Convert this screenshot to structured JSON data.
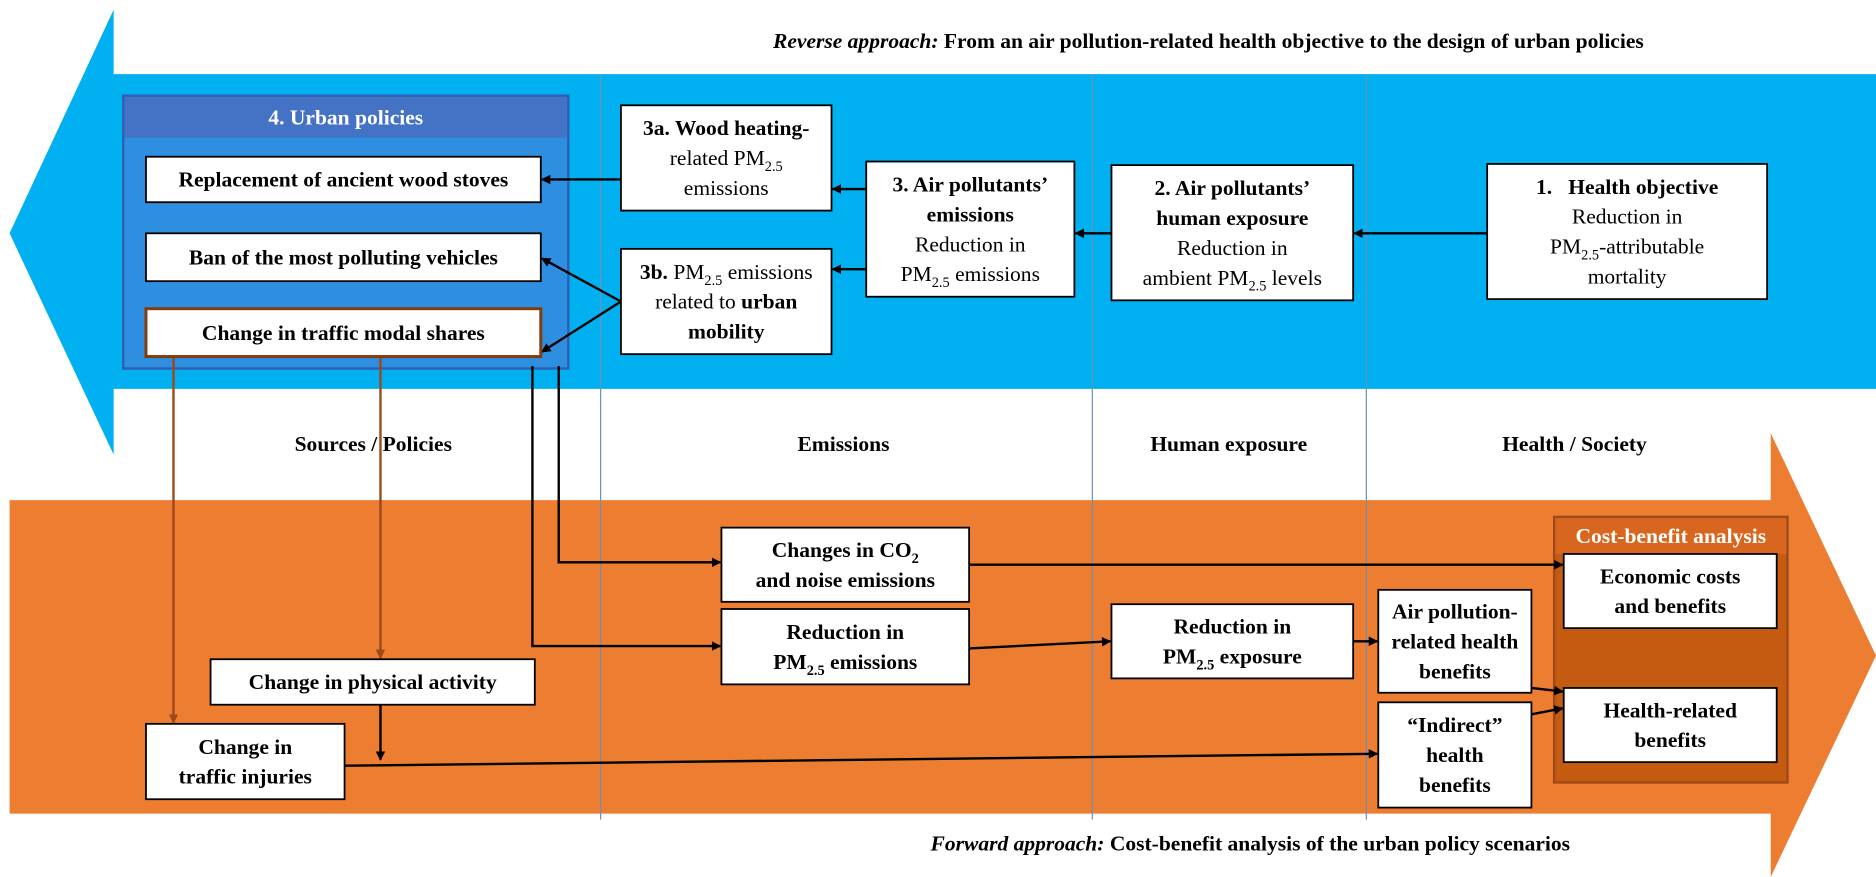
{
  "titles": {
    "reverse": [
      {
        "text": "Reverse approach:",
        "style": "bold-italic"
      },
      {
        "text": " From an air pollution-related health objective to the design of urban policies",
        "style": "bold"
      }
    ],
    "forward": [
      {
        "text": "Forward approach:",
        "style": "bold-italic"
      },
      {
        "text": " Cost-benefit analysis of the urban policy scenarios",
        "style": "bold"
      }
    ]
  },
  "columns": [
    "Sources / Policies",
    "Emissions",
    "Human exposure",
    "Health / Society"
  ],
  "nodes": {
    "policies_title": [
      [
        {
          "text": "4. Urban policies",
          "style": "bold"
        }
      ]
    ],
    "policy_1": [
      [
        {
          "text": "Replacement of ancient wood stoves",
          "style": "bold"
        }
      ]
    ],
    "policy_2": [
      [
        {
          "text": "Ban of the most polluting vehicles",
          "style": "bold"
        }
      ]
    ],
    "policy_3": [
      [
        {
          "text": "Change in traffic modal shares",
          "style": "bold"
        }
      ]
    ],
    "step_3a": [
      [
        {
          "text": "3a. Wood heating-",
          "style": "bold"
        }
      ],
      [
        {
          "text": "related PM",
          "style": "normal"
        },
        {
          "text": "2.5",
          "style": "sub"
        }
      ],
      [
        {
          "text": "emissions",
          "style": "normal"
        }
      ]
    ],
    "step_3b": [
      [
        {
          "text": "3b.",
          "style": "bold"
        },
        {
          "text": " PM",
          "style": "normal"
        },
        {
          "text": "2.5",
          "style": "sub"
        },
        {
          "text": " emissions",
          "style": "normal"
        }
      ],
      [
        {
          "text": "related to ",
          "style": "normal"
        },
        {
          "text": "urban",
          "style": "bold"
        }
      ],
      [
        {
          "text": "mobility",
          "style": "bold"
        }
      ]
    ],
    "step_3": [
      [
        {
          "text": "3. Air pollutants’",
          "style": "bold"
        }
      ],
      [
        {
          "text": "emissions",
          "style": "bold"
        }
      ],
      [
        {
          "text": "Reduction in",
          "style": "normal"
        }
      ],
      [
        {
          "text": "PM",
          "style": "normal"
        },
        {
          "text": "2.5",
          "style": "sub"
        },
        {
          "text": " emissions",
          "style": "normal"
        }
      ]
    ],
    "step_2": [
      [
        {
          "text": "2. Air pollutants’",
          "style": "bold"
        }
      ],
      [
        {
          "text": "human exposure",
          "style": "bold"
        }
      ],
      [
        {
          "text": "Reduction in",
          "style": "normal"
        }
      ],
      [
        {
          "text": "ambient PM",
          "style": "normal"
        },
        {
          "text": "2.5",
          "style": "sub"
        },
        {
          "text": " levels",
          "style": "normal"
        }
      ]
    ],
    "step_1": [
      [
        {
          "text": "1.   Health objective",
          "style": "bold"
        }
      ],
      [
        {
          "text": "Reduction in",
          "style": "normal"
        }
      ],
      [
        {
          "text": "PM",
          "style": "normal"
        },
        {
          "text": "2.5",
          "style": "sub"
        },
        {
          "text": "-attributable",
          "style": "normal"
        }
      ],
      [
        {
          "text": "mortality",
          "style": "normal"
        }
      ]
    ],
    "co2": [
      [
        {
          "text": "Changes in CO",
          "style": "bold"
        },
        {
          "text": "2",
          "style": "bold-sub"
        }
      ],
      [
        {
          "text": "and noise emissions",
          "style": "bold"
        }
      ]
    ],
    "pm_emissions": [
      [
        {
          "text": "Reduction in",
          "style": "bold"
        }
      ],
      [
        {
          "text": "PM",
          "style": "bold"
        },
        {
          "text": "2.5",
          "style": "bold-sub"
        },
        {
          "text": " emissions",
          "style": "bold"
        }
      ]
    ],
    "pm_exposure": [
      [
        {
          "text": "Reduction in",
          "style": "bold"
        }
      ],
      [
        {
          "text": "PM",
          "style": "bold"
        },
        {
          "text": "2.5",
          "style": "bold-sub"
        },
        {
          "text": " exposure",
          "style": "bold"
        }
      ]
    ],
    "ap_benefits": [
      [
        {
          "text": "Air pollution-",
          "style": "bold"
        }
      ],
      [
        {
          "text": "related health",
          "style": "bold"
        }
      ],
      [
        {
          "text": "benefits",
          "style": "bold"
        }
      ]
    ],
    "indirect": [
      [
        {
          "text": "“Indirect”",
          "style": "bold"
        }
      ],
      [
        {
          "text": "health",
          "style": "bold"
        }
      ],
      [
        {
          "text": "benefits",
          "style": "bold"
        }
      ]
    ],
    "cba_title": [
      [
        {
          "text": "Cost-benefit analysis",
          "style": "bold"
        }
      ]
    ],
    "economic": [
      [
        {
          "text": "Economic costs",
          "style": "bold"
        }
      ],
      [
        {
          "text": "and benefits",
          "style": "bold"
        }
      ]
    ],
    "health_related": [
      [
        {
          "text": "Health-related",
          "style": "bold"
        }
      ],
      [
        {
          "text": "benefits",
          "style": "bold"
        }
      ]
    ],
    "physical": [
      [
        {
          "text": "Change in physical activity",
          "style": "bold"
        }
      ]
    ],
    "injuries": [
      [
        {
          "text": "Change in",
          "style": "bold"
        }
      ],
      [
        {
          "text": "traffic injuries",
          "style": "bold"
        }
      ]
    ]
  }
}
